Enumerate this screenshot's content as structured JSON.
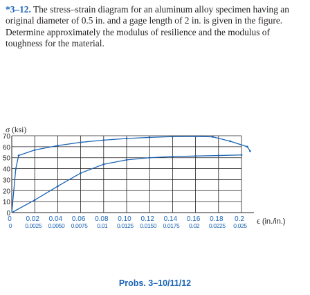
{
  "problem": {
    "number": "*3–12.",
    "text": "The stress–strain diagram for an aluminum alloy specimen having an original diameter of 0.5 in. and a gage length of 2 in. is given in the figure. Determine approximately the modulus of resilience and the modulus of toughness for the material."
  },
  "figure": {
    "caption": "Probs. 3–10/11/12"
  },
  "chart_data": {
    "type": "line",
    "title": "",
    "ylabel": "σ (ksi)",
    "xlabel": "ϵ (in./in.)",
    "ylim": [
      0,
      70
    ],
    "y_ticks": [
      "0",
      "10",
      "20",
      "30",
      "40",
      "50",
      "60",
      "70"
    ],
    "x_ticks_upper": [
      "0",
      "0.02",
      "0.04",
      "0.06",
      "0.08",
      "0.10",
      "0.12",
      "0.14",
      "0.16",
      "0.18",
      "0.2"
    ],
    "x_ticks_lower": [
      "0",
      "0.0025",
      "0.0050",
      "0.0075",
      "0.01",
      "0.0125",
      "0.0150",
      "0.0175",
      "0.02",
      "0.0225",
      "0.025"
    ],
    "grid": true,
    "series": [
      {
        "scale": "upper",
        "color": "#1a63b4",
        "x": [
          0,
          0.0035,
          0.006,
          0.02,
          0.04,
          0.06,
          0.08,
          0.1,
          0.12,
          0.14,
          0.16,
          0.175,
          0.19,
          0.205,
          0.2075
        ],
        "y": [
          0,
          40,
          52,
          57,
          61,
          64,
          66,
          67.5,
          68.5,
          69.2,
          69.4,
          69,
          65,
          60,
          56
        ]
      },
      {
        "scale": "lower",
        "color": "#1a63b4",
        "x": [
          0,
          0.0025,
          0.005,
          0.0075,
          0.01,
          0.0125,
          0.015,
          0.0175,
          0.02,
          0.0225,
          0.025
        ],
        "y": [
          0,
          11.5,
          24,
          36,
          44,
          48,
          50,
          51,
          51.5,
          52,
          52.5
        ]
      }
    ]
  }
}
